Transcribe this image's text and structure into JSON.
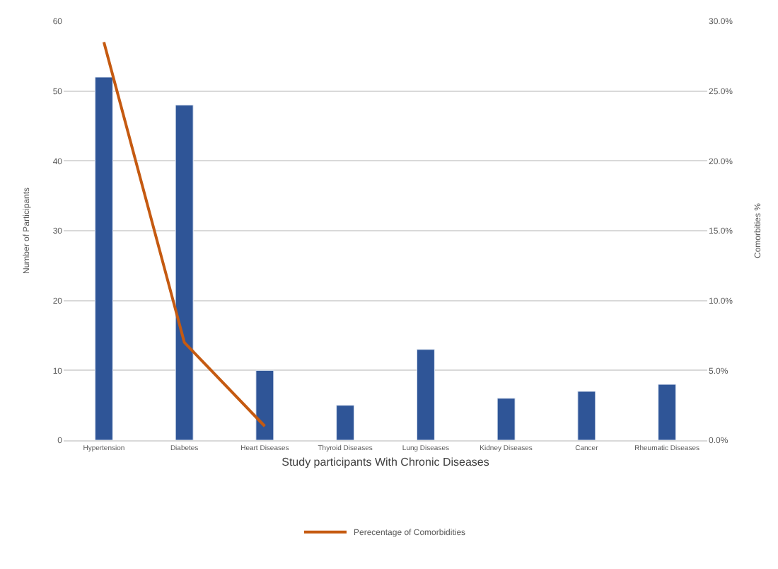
{
  "chart_data": {
    "type": "bar",
    "xlabel": "Study participants With Chronic Diseases",
    "ylabel": "Number of Participants",
    "y2label": "Comorbities %",
    "categories": [
      "Hypertension",
      "Diabetes",
      "Heart Diseases",
      "Thyroid Diseases",
      "Lung Diseases",
      "Kidney Diseases",
      "Cancer",
      "Rheumatic Diseases"
    ],
    "series": [
      {
        "color": "#2f5597",
        "values": [
          52,
          48,
          10,
          5,
          13,
          6,
          7,
          8
        ]
      },
      {
        "type": "line",
        "name": "Perecentage of Comorbidities",
        "color": "#c55a11",
        "axis": "y2",
        "marker": "none",
        "values": [
          28.5,
          7.0,
          1.0,
          null,
          null,
          null,
          null,
          null
        ]
      }
    ],
    "ylim": [
      0,
      60
    ],
    "yticks": [
      0,
      10,
      20,
      30,
      40,
      50,
      60
    ],
    "y2lim": [
      0,
      30
    ],
    "y2ticks": [
      {
        "value": 0,
        "label": "0.0%"
      },
      {
        "value": 5,
        "label": "5.0%"
      },
      {
        "value": 10,
        "label": "10.0%"
      },
      {
        "value": 15,
        "label": "15.0%"
      },
      {
        "value": 20,
        "label": "20.0%"
      },
      {
        "value": 25,
        "label": "25.0%"
      },
      {
        "value": 30,
        "label": "30.0%"
      }
    ],
    "grid": "y",
    "legend": "bottom"
  }
}
